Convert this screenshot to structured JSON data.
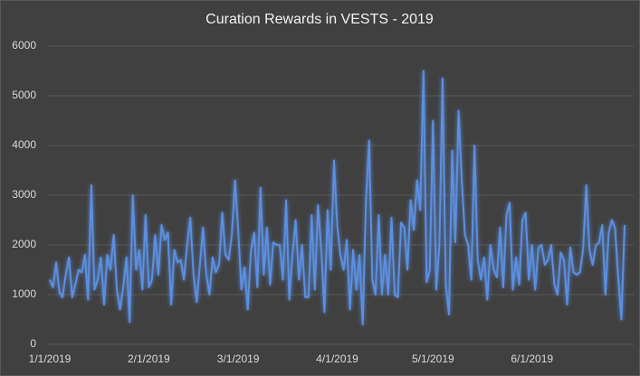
{
  "chart_data": {
    "type": "line",
    "title": "Curation Rewards in VESTS - 2019",
    "x": [
      "1/1/2019",
      "1/2/2019",
      "1/3/2019",
      "1/4/2019",
      "1/5/2019",
      "1/6/2019",
      "1/7/2019",
      "1/8/2019",
      "1/9/2019",
      "1/10/2019",
      "1/11/2019",
      "1/12/2019",
      "1/13/2019",
      "1/14/2019",
      "1/15/2019",
      "1/16/2019",
      "1/17/2019",
      "1/18/2019",
      "1/19/2019",
      "1/20/2019",
      "1/21/2019",
      "1/22/2019",
      "1/23/2019",
      "1/24/2019",
      "1/25/2019",
      "1/26/2019",
      "1/27/2019",
      "1/28/2019",
      "1/29/2019",
      "1/30/2019",
      "1/31/2019",
      "2/1/2019",
      "2/2/2019",
      "2/3/2019",
      "2/4/2019",
      "2/5/2019",
      "2/6/2019",
      "2/7/2019",
      "2/8/2019",
      "2/9/2019",
      "2/10/2019",
      "2/11/2019",
      "2/12/2019",
      "2/13/2019",
      "2/14/2019",
      "2/15/2019",
      "2/16/2019",
      "2/17/2019",
      "2/18/2019",
      "2/19/2019",
      "2/20/2019",
      "2/21/2019",
      "2/22/2019",
      "2/23/2019",
      "2/24/2019",
      "2/25/2019",
      "2/26/2019",
      "2/27/2019",
      "2/28/2019",
      "3/1/2019",
      "3/2/2019",
      "3/3/2019",
      "3/4/2019",
      "3/5/2019",
      "3/6/2019",
      "3/7/2019",
      "3/8/2019",
      "3/9/2019",
      "3/10/2019",
      "3/11/2019",
      "3/12/2019",
      "3/13/2019",
      "3/14/2019",
      "3/15/2019",
      "3/16/2019",
      "3/17/2019",
      "3/18/2019",
      "3/19/2019",
      "3/20/2019",
      "3/21/2019",
      "3/22/2019",
      "3/23/2019",
      "3/24/2019",
      "3/25/2019",
      "3/26/2019",
      "3/27/2019",
      "3/28/2019",
      "3/29/2019",
      "3/30/2019",
      "3/31/2019",
      "4/1/2019",
      "4/2/2019",
      "4/3/2019",
      "4/4/2019",
      "4/5/2019",
      "4/6/2019",
      "4/7/2019",
      "4/8/2019",
      "4/9/2019",
      "4/10/2019",
      "4/11/2019",
      "4/12/2019",
      "4/13/2019",
      "4/14/2019",
      "4/15/2019",
      "4/16/2019",
      "4/17/2019",
      "4/18/2019",
      "4/19/2019",
      "4/20/2019",
      "4/21/2019",
      "4/22/2019",
      "4/23/2019",
      "4/24/2019",
      "4/25/2019",
      "4/26/2019",
      "4/27/2019",
      "4/28/2019",
      "4/29/2019",
      "4/30/2019",
      "5/1/2019",
      "5/2/2019",
      "5/3/2019",
      "5/4/2019",
      "5/5/2019",
      "5/6/2019",
      "5/7/2019",
      "5/8/2019",
      "5/9/2019",
      "5/10/2019",
      "5/11/2019",
      "5/12/2019",
      "5/13/2019",
      "5/14/2019",
      "5/15/2019",
      "5/16/2019",
      "5/17/2019",
      "5/18/2019",
      "5/19/2019",
      "5/20/2019",
      "5/21/2019",
      "5/22/2019",
      "5/23/2019",
      "5/24/2019",
      "5/25/2019",
      "5/26/2019",
      "5/27/2019",
      "5/28/2019",
      "5/29/2019",
      "5/30/2019",
      "5/31/2019",
      "6/1/2019",
      "6/2/2019",
      "6/3/2019",
      "6/4/2019",
      "6/5/2019",
      "6/6/2019",
      "6/7/2019",
      "6/8/2019",
      "6/9/2019",
      "6/10/2019",
      "6/11/2019",
      "6/12/2019",
      "6/13/2019",
      "6/14/2019",
      "6/15/2019",
      "6/16/2019",
      "6/17/2019",
      "6/18/2019",
      "6/19/2019",
      "6/20/2019",
      "6/21/2019",
      "6/22/2019",
      "6/23/2019",
      "6/24/2019",
      "6/25/2019",
      "6/26/2019",
      "6/27/2019",
      "6/28/2019",
      "6/29/2019",
      "6/30/2019"
    ],
    "values": [
      1300,
      1150,
      1650,
      1050,
      950,
      1400,
      1750,
      950,
      1200,
      1500,
      1450,
      1800,
      900,
      3200,
      1100,
      1300,
      1750,
      800,
      1800,
      1500,
      2200,
      1100,
      700,
      1150,
      1750,
      450,
      3000,
      1500,
      1900,
      1100,
      2600,
      1150,
      1300,
      2200,
      1400,
      2400,
      2100,
      2250,
      800,
      1900,
      1650,
      1700,
      1300,
      2000,
      2550,
      1400,
      850,
      1600,
      2350,
      1400,
      1000,
      1750,
      1450,
      1600,
      2650,
      1800,
      1700,
      2200,
      3300,
      2300,
      1100,
      1550,
      700,
      1900,
      2250,
      1150,
      3150,
      1400,
      2350,
      1200,
      2050,
      2000,
      2000,
      1300,
      2900,
      900,
      1800,
      2500,
      1300,
      2000,
      950,
      950,
      2600,
      1100,
      2800,
      1900,
      650,
      2700,
      1500,
      3700,
      2400,
      1800,
      1500,
      2100,
      700,
      1900,
      1100,
      1800,
      400,
      2900,
      4100,
      1300,
      1000,
      2600,
      1000,
      1800,
      1000,
      2550,
      1000,
      950,
      2450,
      2350,
      1500,
      2900,
      2300,
      3300,
      2700,
      5500,
      1250,
      1500,
      4500,
      1100,
      2000,
      5350,
      1200,
      600,
      3900,
      2050,
      4700,
      3300,
      2200,
      2000,
      1300,
      4000,
      1700,
      1300,
      1750,
      900,
      2000,
      1500,
      1350,
      2350,
      1150,
      2600,
      2850,
      1100,
      1750,
      1200,
      2500,
      2650,
      1300,
      2000,
      1100,
      1950,
      2000,
      1600,
      1700,
      2000,
      1200,
      1000,
      1850,
      1700,
      800,
      1950,
      1450,
      1400,
      1450,
      1900,
      3200,
      1900,
      1600,
      2000,
      2050,
      2400,
      1000,
      2250,
      2500,
      2350,
      1350,
      500,
      2400
    ],
    "color": "#5b8fe0",
    "xlim": [
      "1/1/2019",
      "6/30/2019"
    ],
    "xticks": [
      "1/1/2019",
      "2/1/2019",
      "3/1/2019",
      "4/1/2019",
      "5/1/2019",
      "6/1/2019"
    ],
    "ylim": [
      0,
      6000
    ],
    "yticks": [
      0,
      1000,
      2000,
      3000,
      4000,
      5000,
      6000
    ],
    "grid": true
  }
}
